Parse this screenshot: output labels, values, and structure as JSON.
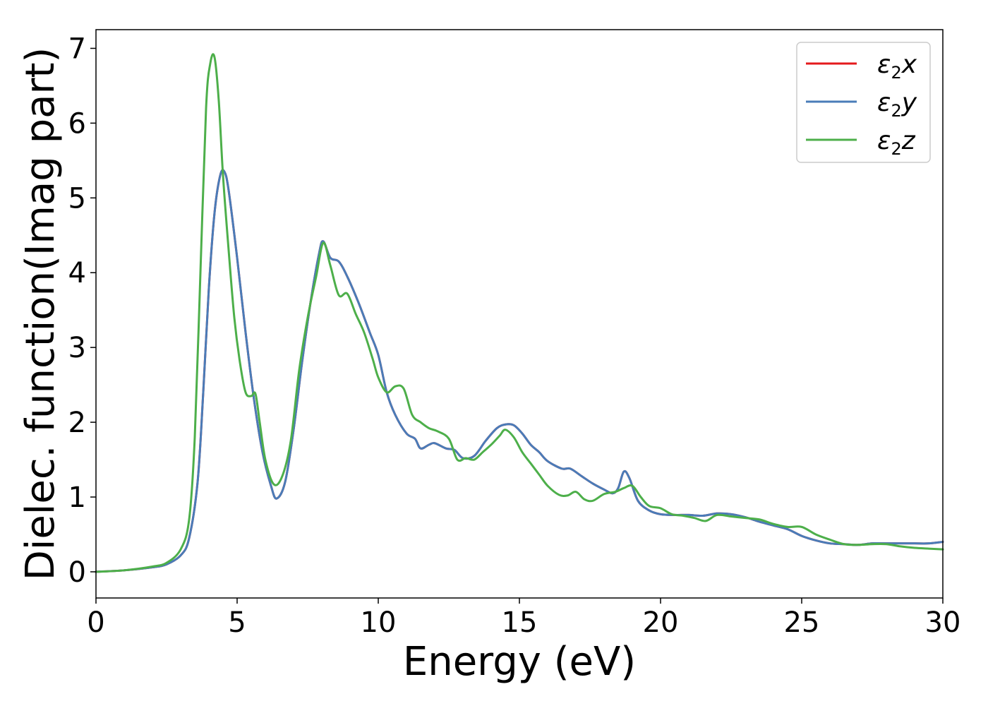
{
  "chart_data": {
    "type": "line",
    "xlabel": "Energy (eV)",
    "ylabel": "Dielec. function(Imag part)",
    "xlim": [
      0,
      30
    ],
    "ylim": [
      -0.35,
      7.25
    ],
    "xticks": [
      0,
      5,
      10,
      15,
      20,
      25,
      30
    ],
    "yticks": [
      0,
      1,
      2,
      3,
      4,
      5,
      6,
      7
    ],
    "xtick_labels": [
      "0",
      "5",
      "10",
      "15",
      "20",
      "25",
      "30"
    ],
    "ytick_labels": [
      "0",
      "1",
      "2",
      "3",
      "4",
      "5",
      "6",
      "7"
    ],
    "grid": false,
    "legend": {
      "position": "top-right"
    },
    "series": [
      {
        "name": "ε2x",
        "legend_base": "ε",
        "legend_sub": "2",
        "legend_tail": "x",
        "color": "#e41a1c",
        "x": [
          0,
          1,
          2,
          2.5,
          3,
          3.3,
          3.6,
          3.8,
          4.0,
          4.2,
          4.4,
          4.55,
          4.7,
          5.0,
          5.3,
          5.6,
          5.9,
          6.2,
          6.4,
          6.7,
          7.0,
          7.3,
          7.6,
          7.9,
          8.05,
          8.3,
          8.6,
          8.9,
          9.3,
          9.7,
          10.0,
          10.3,
          10.6,
          11.0,
          11.3,
          11.5,
          11.8,
          12.0,
          12.4,
          12.7,
          13.0,
          13.4,
          13.8,
          14.2,
          14.5,
          14.8,
          15.1,
          15.4,
          15.7,
          16.0,
          16.5,
          16.8,
          17.2,
          17.6,
          18.0,
          18.3,
          18.5,
          18.7,
          18.9,
          19.2,
          19.6,
          20.0,
          20.5,
          21.0,
          21.5,
          22.0,
          22.5,
          23.0,
          23.5,
          24.0,
          24.5,
          25.0,
          25.5,
          26.0,
          26.5,
          27.0,
          27.5,
          28.0,
          28.5,
          29.0,
          29.5,
          30.0
        ],
        "y": [
          0.0,
          0.02,
          0.06,
          0.1,
          0.22,
          0.45,
          1.2,
          2.4,
          3.8,
          4.8,
          5.3,
          5.35,
          5.1,
          4.2,
          3.2,
          2.3,
          1.6,
          1.15,
          0.98,
          1.2,
          1.9,
          2.8,
          3.6,
          4.25,
          4.42,
          4.2,
          4.15,
          3.95,
          3.6,
          3.2,
          2.9,
          2.4,
          2.1,
          1.85,
          1.78,
          1.65,
          1.7,
          1.72,
          1.65,
          1.63,
          1.52,
          1.55,
          1.75,
          1.92,
          1.97,
          1.96,
          1.85,
          1.7,
          1.6,
          1.48,
          1.38,
          1.38,
          1.28,
          1.18,
          1.1,
          1.05,
          1.12,
          1.34,
          1.25,
          0.95,
          0.82,
          0.77,
          0.76,
          0.76,
          0.75,
          0.78,
          0.77,
          0.73,
          0.67,
          0.62,
          0.57,
          0.48,
          0.42,
          0.38,
          0.37,
          0.36,
          0.38,
          0.38,
          0.38,
          0.38,
          0.38,
          0.4
        ]
      },
      {
        "name": "ε2y",
        "legend_base": "ε",
        "legend_sub": "2",
        "legend_tail": "y",
        "color": "#4a7cb8",
        "x": [
          0,
          1,
          2,
          2.5,
          3,
          3.3,
          3.6,
          3.8,
          4.0,
          4.2,
          4.4,
          4.55,
          4.7,
          5.0,
          5.3,
          5.6,
          5.9,
          6.2,
          6.4,
          6.7,
          7.0,
          7.3,
          7.6,
          7.9,
          8.05,
          8.3,
          8.6,
          8.9,
          9.3,
          9.7,
          10.0,
          10.3,
          10.6,
          11.0,
          11.3,
          11.5,
          11.8,
          12.0,
          12.4,
          12.7,
          13.0,
          13.4,
          13.8,
          14.2,
          14.5,
          14.8,
          15.1,
          15.4,
          15.7,
          16.0,
          16.5,
          16.8,
          17.2,
          17.6,
          18.0,
          18.3,
          18.5,
          18.7,
          18.9,
          19.2,
          19.6,
          20.0,
          20.5,
          21.0,
          21.5,
          22.0,
          22.5,
          23.0,
          23.5,
          24.0,
          24.5,
          25.0,
          25.5,
          26.0,
          26.5,
          27.0,
          27.5,
          28.0,
          28.5,
          29.0,
          29.5,
          30.0
        ],
        "y": [
          0.0,
          0.02,
          0.06,
          0.1,
          0.22,
          0.45,
          1.2,
          2.4,
          3.8,
          4.8,
          5.3,
          5.35,
          5.1,
          4.2,
          3.2,
          2.3,
          1.6,
          1.15,
          0.98,
          1.2,
          1.9,
          2.8,
          3.6,
          4.25,
          4.42,
          4.2,
          4.15,
          3.95,
          3.6,
          3.2,
          2.9,
          2.4,
          2.1,
          1.85,
          1.78,
          1.65,
          1.7,
          1.72,
          1.65,
          1.63,
          1.52,
          1.55,
          1.75,
          1.92,
          1.97,
          1.96,
          1.85,
          1.7,
          1.6,
          1.48,
          1.38,
          1.38,
          1.28,
          1.18,
          1.1,
          1.05,
          1.12,
          1.34,
          1.25,
          0.95,
          0.82,
          0.77,
          0.76,
          0.76,
          0.75,
          0.78,
          0.77,
          0.73,
          0.67,
          0.62,
          0.57,
          0.48,
          0.42,
          0.38,
          0.37,
          0.36,
          0.38,
          0.38,
          0.38,
          0.38,
          0.38,
          0.4
        ]
      },
      {
        "name": "ε2z",
        "legend_base": "ε",
        "legend_sub": "2",
        "legend_tail": "z",
        "color": "#4daf4a",
        "x": [
          0,
          1,
          2,
          2.5,
          3,
          3.3,
          3.5,
          3.7,
          3.9,
          4.05,
          4.2,
          4.35,
          4.5,
          4.7,
          4.9,
          5.1,
          5.3,
          5.5,
          5.65,
          5.8,
          6.0,
          6.3,
          6.6,
          6.9,
          7.2,
          7.5,
          7.8,
          8.05,
          8.3,
          8.6,
          8.9,
          9.2,
          9.5,
          9.8,
          10.0,
          10.3,
          10.6,
          10.9,
          11.2,
          11.5,
          11.8,
          12.1,
          12.5,
          12.8,
          13.1,
          13.4,
          13.7,
          14.0,
          14.3,
          14.5,
          14.8,
          15.1,
          15.4,
          15.7,
          16.0,
          16.4,
          16.7,
          17.0,
          17.3,
          17.6,
          18.0,
          18.4,
          18.7,
          19.0,
          19.3,
          19.6,
          20.0,
          20.4,
          20.8,
          21.2,
          21.6,
          22.0,
          22.5,
          23.0,
          23.5,
          24.0,
          24.5,
          25.0,
          25.5,
          26.0,
          26.5,
          27.0,
          27.5,
          28.0,
          28.5,
          29.0,
          29.5,
          30.0
        ],
        "y": [
          0.0,
          0.02,
          0.07,
          0.12,
          0.3,
          0.7,
          1.8,
          4.0,
          6.2,
          6.8,
          6.88,
          6.3,
          5.3,
          4.3,
          3.4,
          2.8,
          2.4,
          2.35,
          2.38,
          2.0,
          1.5,
          1.17,
          1.28,
          1.75,
          2.7,
          3.4,
          3.95,
          4.4,
          4.1,
          3.7,
          3.72,
          3.45,
          3.2,
          2.85,
          2.6,
          2.4,
          2.48,
          2.45,
          2.1,
          2.0,
          1.92,
          1.88,
          1.78,
          1.5,
          1.52,
          1.5,
          1.6,
          1.7,
          1.82,
          1.9,
          1.8,
          1.6,
          1.45,
          1.3,
          1.15,
          1.03,
          1.02,
          1.07,
          0.97,
          0.95,
          1.04,
          1.07,
          1.12,
          1.15,
          1.0,
          0.88,
          0.85,
          0.77,
          0.75,
          0.72,
          0.68,
          0.76,
          0.74,
          0.72,
          0.7,
          0.64,
          0.6,
          0.6,
          0.5,
          0.43,
          0.37,
          0.36,
          0.37,
          0.37,
          0.34,
          0.32,
          0.31,
          0.3
        ]
      }
    ]
  }
}
